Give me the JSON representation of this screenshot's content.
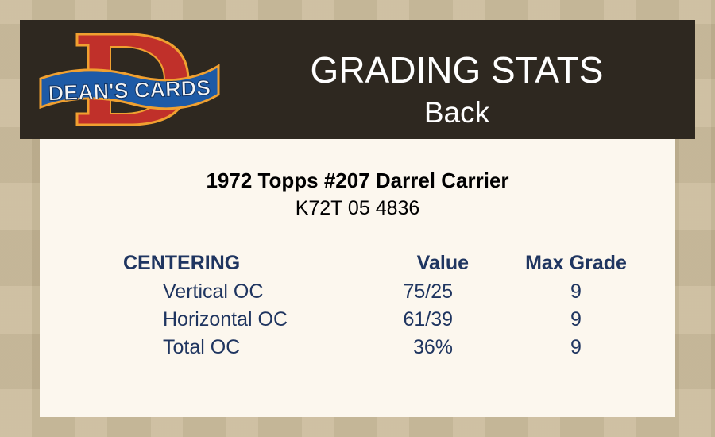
{
  "brand": {
    "logo_text": "DEAN'S CARDS",
    "logo_letter": "D"
  },
  "header": {
    "title": "GRADING STATS",
    "subtitle": "Back"
  },
  "card": {
    "name": "1972 Topps #207 Darrel Carrier",
    "cert": "K72T 05 4836"
  },
  "table": {
    "headers": [
      "CENTERING",
      "Value",
      "Max Grade"
    ],
    "rows": [
      {
        "label": "Vertical OC",
        "value": "75/25",
        "max_grade": "9"
      },
      {
        "label": "Horizontal OC",
        "value": "61/39",
        "max_grade": "9"
      },
      {
        "label": "Total OC",
        "value": "36%",
        "max_grade": "9"
      }
    ]
  },
  "colors": {
    "header_bg": "#2e2820",
    "panel_bg": "#fcf7ee",
    "table_text": "#1f3560",
    "logo_red": "#c0302a",
    "logo_blue": "#1d5aa6"
  }
}
